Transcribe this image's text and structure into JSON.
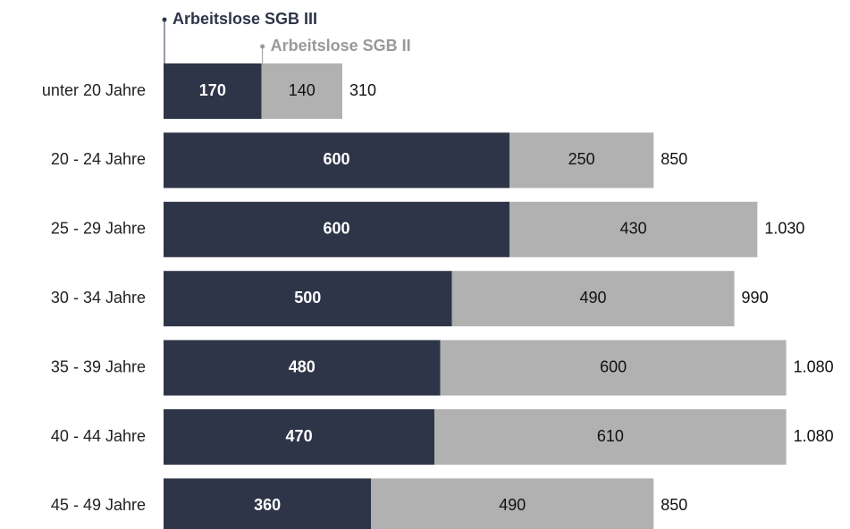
{
  "chart_data": {
    "type": "stacked-bar-horizontal",
    "categories": [
      "unter 20 Jahre",
      "20 - 24 Jahre",
      "25 - 29 Jahre",
      "30 - 34 Jahre",
      "35 - 39 Jahre",
      "40 - 44 Jahre",
      "45 - 49 Jahre"
    ],
    "series": [
      {
        "name": "Arbeitslose SGB III",
        "color": "#2e3548",
        "label_color": "#ffffff",
        "values": [
          170,
          600,
          600,
          500,
          480,
          470,
          360
        ]
      },
      {
        "name": "Arbeitslose SGB II",
        "color": "#b1b1b1",
        "label_color": "#111111",
        "values": [
          140,
          250,
          430,
          490,
          600,
          610,
          490
        ]
      }
    ],
    "totals": {
      "values": [
        310,
        850,
        1030,
        990,
        1080,
        1080,
        850
      ],
      "value_labels": [
        "310",
        "850",
        "1.030",
        "990",
        "1.080",
        "1.080",
        "850"
      ]
    },
    "xlim": [
      0,
      1100
    ]
  }
}
